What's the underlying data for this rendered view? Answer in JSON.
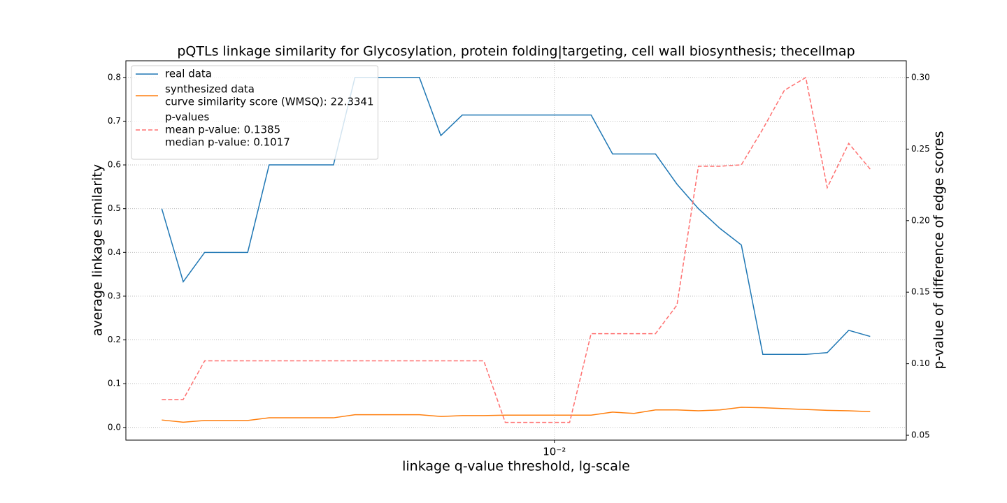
{
  "chart_data": {
    "type": "line",
    "title": "pQTLs linkage similarity for Glycosylation, protein folding|targeting, cell wall biosynthesis; thecellmap",
    "x_label": "linkage q-value threshold, lg-scale",
    "y_label": "average linkage similarity",
    "y2_label": "p-value of difference of edge scores",
    "x_scale": "log",
    "x": [
      0.00133,
      0.001485,
      0.001658,
      0.001852,
      0.002068,
      0.002309,
      0.002578,
      0.002879,
      0.003214,
      0.003589,
      0.004008,
      0.004475,
      0.004997,
      0.00558,
      0.00623,
      0.006957,
      0.007768,
      0.008674,
      0.009686,
      0.010815,
      0.012076,
      0.013485,
      0.015057,
      0.016813,
      0.018774,
      0.020963,
      0.023408,
      0.026137,
      0.029186,
      0.032589,
      0.03639,
      0.040634,
      0.045373,
      0.050664
    ],
    "series": [
      {
        "name": "real data",
        "color": "#1f77b4",
        "linestyle": "solid",
        "values": [
          0.5,
          0.333,
          0.4,
          0.4,
          0.4,
          0.6,
          0.6,
          0.6,
          0.6,
          0.8,
          0.8,
          0.8,
          0.8,
          0.667,
          0.714,
          0.714,
          0.714,
          0.714,
          0.714,
          0.714,
          0.714,
          0.625,
          0.625,
          0.625,
          0.556,
          0.5,
          0.455,
          0.417,
          0.167,
          0.167,
          0.167,
          0.171,
          0.222,
          0.208
        ]
      },
      {
        "name": "synthesized data",
        "color": "#ff7f0e",
        "linestyle": "solid",
        "legend_notes": [
          "curve similarity score (WMSQ): 22.3341"
        ],
        "values": [
          0.017,
          0.012,
          0.016,
          0.016,
          0.016,
          0.022,
          0.022,
          0.022,
          0.022,
          0.029,
          0.029,
          0.029,
          0.029,
          0.025,
          0.027,
          0.027,
          0.028,
          0.028,
          0.028,
          0.028,
          0.028,
          0.035,
          0.032,
          0.04,
          0.04,
          0.038,
          0.04,
          0.046,
          0.045,
          0.043,
          0.041,
          0.039,
          0.038,
          0.036
        ]
      },
      {
        "name": "p-values",
        "color": "#ff7070",
        "linestyle": "dashed",
        "axis": "y2",
        "legend_notes": [
          "mean p-value: 0.1385",
          "median p-value: 0.1017"
        ],
        "values": [
          0.075,
          0.075,
          0.102,
          0.102,
          0.102,
          0.102,
          0.102,
          0.102,
          0.102,
          0.102,
          0.102,
          0.102,
          0.102,
          0.102,
          0.102,
          0.102,
          0.059,
          0.059,
          0.059,
          0.059,
          0.121,
          0.121,
          0.121,
          0.121,
          0.141,
          0.238,
          0.238,
          0.239,
          0.264,
          0.291,
          0.3,
          0.223,
          0.254,
          0.236
        ]
      }
    ],
    "xlim": [
      0.001106,
      0.061
    ],
    "xticks": [
      {
        "value": 0.01,
        "label": "10⁻²"
      }
    ],
    "ylim": [
      -0.029,
      0.838
    ],
    "yticks": [
      {
        "value": 0,
        "label": "0.0"
      },
      0.1,
      0.2,
      0.3,
      0.4,
      0.5,
      0.6,
      0.7,
      0.8
    ],
    "y2lim": [
      0.0466,
      0.3117
    ],
    "y2ticks": [
      0.05,
      {
        "value": 0.1,
        "label": "0.10"
      },
      0.15,
      {
        "value": 0.2,
        "label": "0.20"
      },
      0.25,
      {
        "value": 0.3,
        "label": "0.30"
      }
    ],
    "grid": true,
    "legend": "upper left"
  }
}
